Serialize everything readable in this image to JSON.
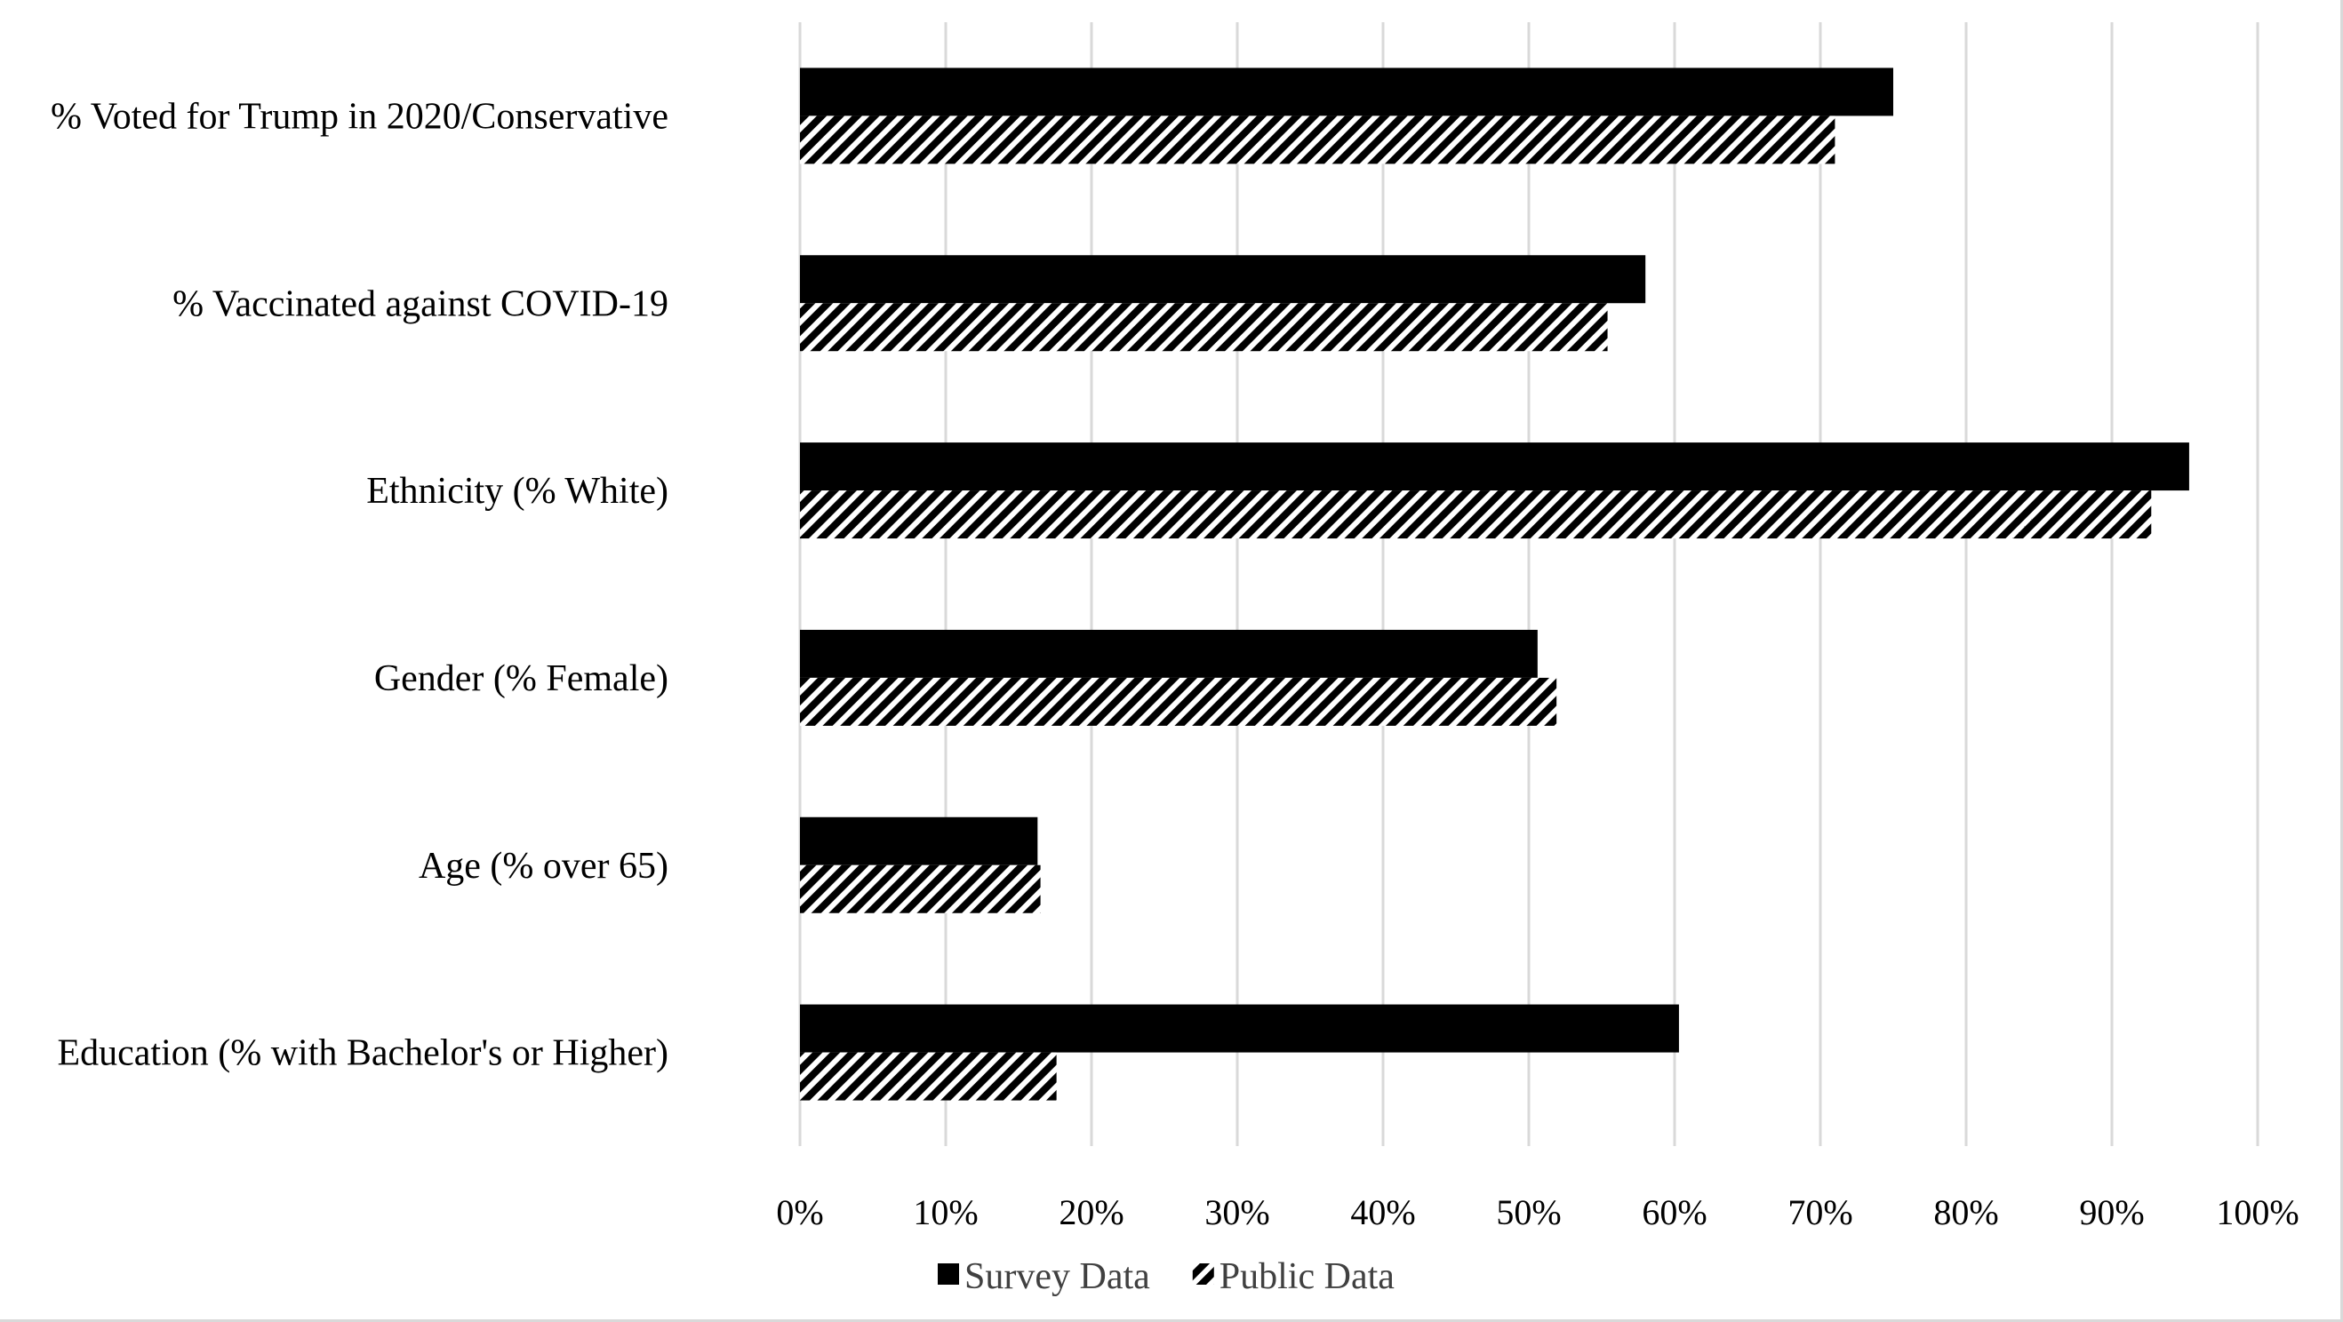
{
  "chart_data": {
    "type": "bar",
    "orientation": "horizontal",
    "categories": [
      "% Voted for Trump in 2020/Conservative",
      "% Vaccinated against COVID-19",
      "Ethnicity (% White)",
      "Gender (% Female)",
      "Age (% over 65)",
      "Education (% with Bachelor's or Higher)"
    ],
    "series": [
      {
        "name": "Survey Data",
        "values": [
          75,
          58,
          95.3,
          50.6,
          16.3,
          60.3
        ],
        "fill": "solid",
        "color": "#000000"
      },
      {
        "name": "Public Data",
        "values": [
          71,
          55.4,
          92.7,
          51.9,
          16.5,
          17.6
        ],
        "fill": "diagonal-hatch",
        "color": "#000000"
      }
    ],
    "xlim": [
      0,
      100
    ],
    "x_ticks": [
      "0%",
      "10%",
      "20%",
      "30%",
      "40%",
      "50%",
      "60%",
      "70%",
      "80%",
      "90%",
      "100%"
    ],
    "grid": "vertical",
    "legend_position": "bottom-center",
    "title": "",
    "xlabel": "",
    "ylabel": ""
  }
}
